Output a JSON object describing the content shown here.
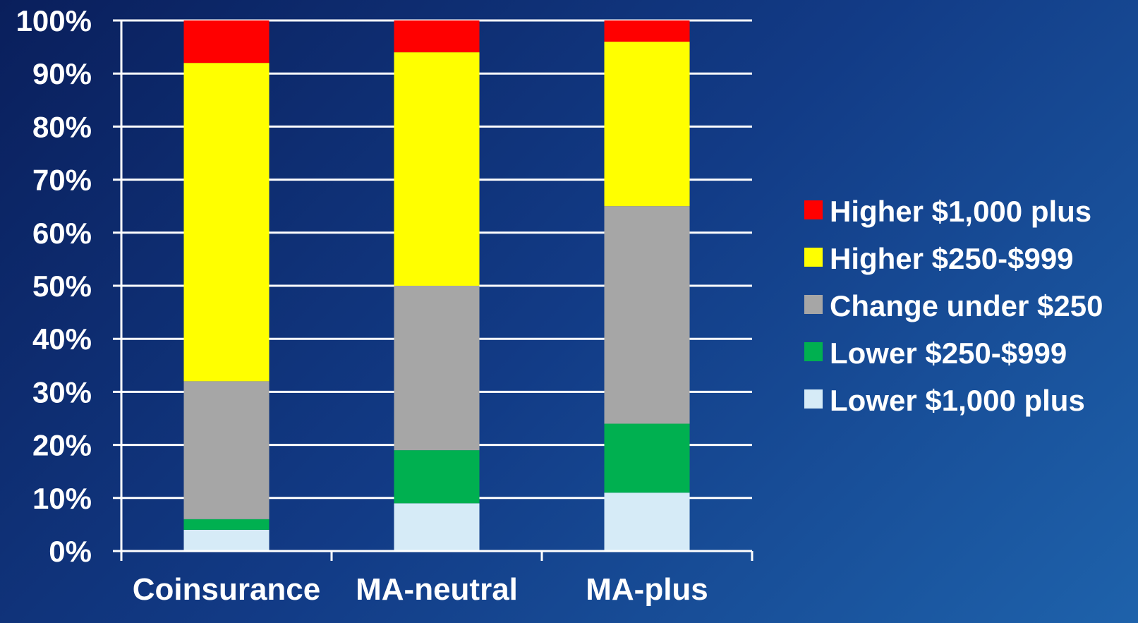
{
  "chart_data": {
    "type": "bar",
    "stacked": true,
    "categories": [
      "Coinsurance",
      "MA-neutral",
      "MA-plus"
    ],
    "y_ticks": [
      "0%",
      "10%",
      "20%",
      "30%",
      "40%",
      "50%",
      "60%",
      "70%",
      "80%",
      "90%",
      "100%"
    ],
    "ylim": [
      0,
      100
    ],
    "grid": true,
    "legend_position": "right",
    "series": [
      {
        "name": "Lower $1,000 plus",
        "color": "#d6ebf7",
        "values": [
          4,
          9,
          11
        ]
      },
      {
        "name": "Lower $250-$999",
        "color": "#00b050",
        "values": [
          2,
          10,
          13
        ]
      },
      {
        "name": "Change under $250",
        "color": "#a6a6a6",
        "values": [
          26,
          31,
          41
        ]
      },
      {
        "name": "Higher $250-$999",
        "color": "#ffff00",
        "values": [
          60,
          44,
          31
        ]
      },
      {
        "name": "Higher $1,000 plus",
        "color": "#ff0000",
        "values": [
          8,
          6,
          4
        ]
      }
    ],
    "legend_order": [
      "Higher $1,000 plus",
      "Higher $250-$999",
      "Change under $250",
      "Lower $250-$999",
      "Lower $1,000 plus"
    ]
  }
}
